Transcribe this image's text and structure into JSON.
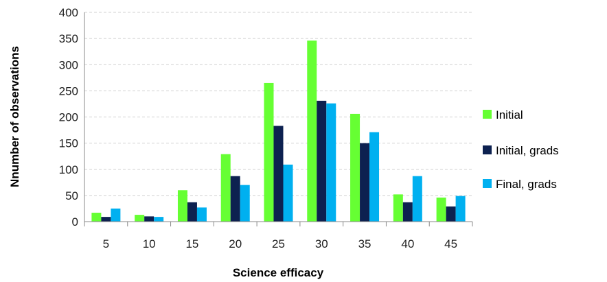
{
  "chart_data": {
    "type": "bar",
    "xlabel": "Science efficacy",
    "ylabel": "Nnumber of observations",
    "categories": [
      "5",
      "10",
      "15",
      "20",
      "25",
      "30",
      "35",
      "40",
      "45"
    ],
    "ylim": [
      0,
      400
    ],
    "yticks": [
      0,
      50,
      100,
      150,
      200,
      250,
      300,
      350,
      400
    ],
    "grid": true,
    "legend_position": "right",
    "series": [
      {
        "name": "Initial",
        "color": "#66ff33",
        "values": [
          17,
          13,
          60,
          129,
          265,
          346,
          206,
          52,
          46
        ]
      },
      {
        "name": "Initial, grads",
        "color": "#0d2150",
        "values": [
          9,
          10,
          37,
          87,
          183,
          231,
          150,
          37,
          29
        ]
      },
      {
        "name": "Final, grads",
        "color": "#00b0f0",
        "values": [
          25,
          9,
          27,
          70,
          109,
          226,
          171,
          87,
          49
        ]
      }
    ]
  }
}
